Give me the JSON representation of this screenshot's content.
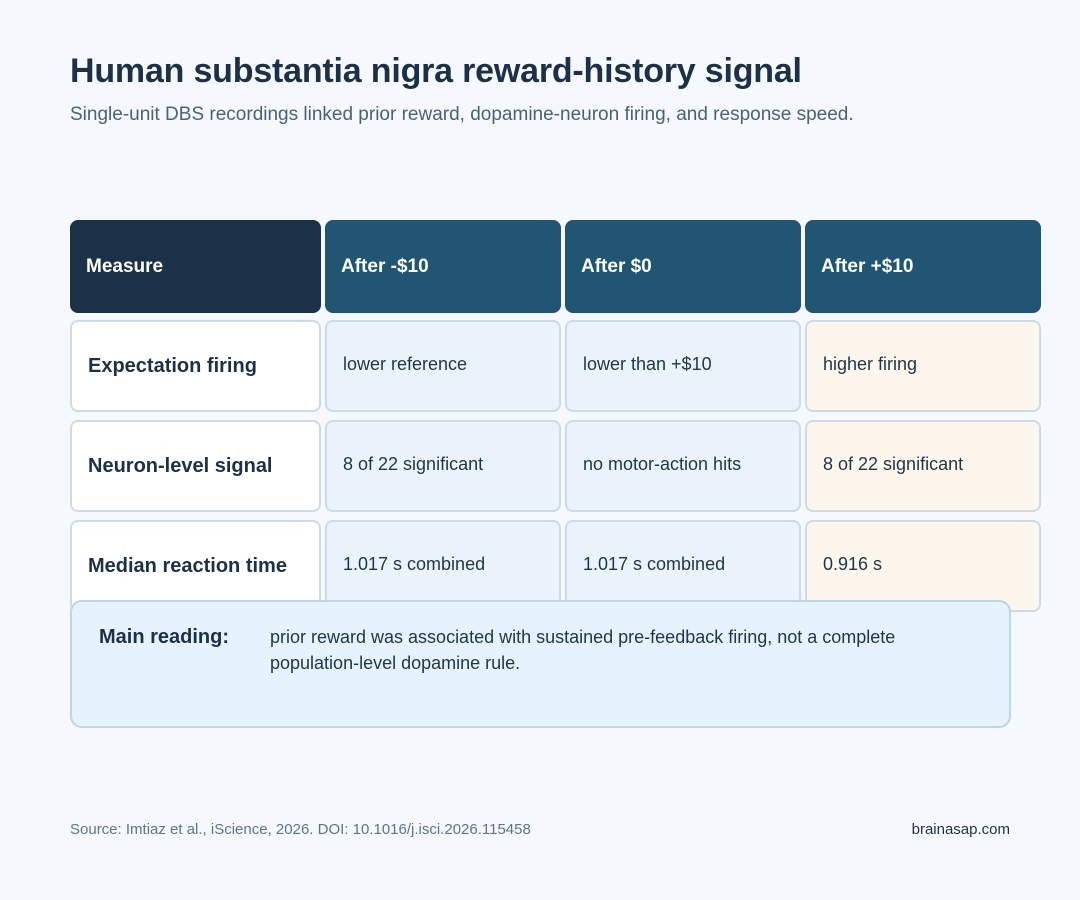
{
  "header": {
    "title": "Human substantia nigra reward-history signal",
    "subtitle": "Single-unit DBS recordings linked prior reward, dopamine-neuron firing, and response speed."
  },
  "table": {
    "columns": [
      "Measure",
      "After -$10",
      "After $0",
      "After +$10"
    ],
    "rows": [
      {
        "label": "Expectation firing",
        "cells": [
          "lower reference",
          "lower than +$10",
          "higher firing"
        ]
      },
      {
        "label": "Neuron-level signal",
        "cells": [
          "8 of 22 significant",
          "no motor-action hits",
          "8 of 22 significant"
        ]
      },
      {
        "label": "Median reaction time",
        "cells": [
          "1.017 s combined",
          "1.017 s combined",
          "0.916 s"
        ]
      }
    ]
  },
  "note": {
    "label": "Main reading:",
    "text": "prior reward was associated with sustained pre-feedback firing, not a complete population-level dopamine rule."
  },
  "footer": {
    "source": "Source: Imtiaz et al., iScience, 2026. DOI: 10.1016/j.isci.2026.115458",
    "brand": "brainasap.com"
  },
  "colors": {
    "background": "#f5f9fd",
    "header_dark": "#1b3148",
    "header_col": "#205573",
    "cell_cool": "#eaf3fb",
    "cell_warm": "#fdf6ec",
    "note_bg": "#e6f2fd"
  }
}
